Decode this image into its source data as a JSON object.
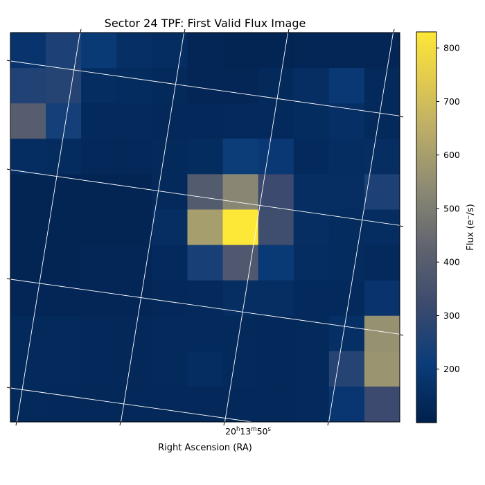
{
  "chart_data": {
    "type": "heatmap",
    "title": "Sector 24 TPF: First Valid Flux Image",
    "xlabel": "Right Ascension (RA)",
    "x_tick_label": "20h13m50s",
    "x_tick_parts": {
      "h": "20",
      "m": "13",
      "s": "50"
    },
    "colorbar": {
      "label": "Flux (e⁻/s)",
      "ticks": [
        200,
        300,
        400,
        500,
        600,
        700,
        800
      ],
      "range": [
        100,
        830
      ],
      "colormap": "cividis"
    },
    "grid": true,
    "rows": 11,
    "cols": 11,
    "values": [
      [
        175,
        250,
        200,
        160,
        150,
        125,
        120,
        120,
        125,
        125,
        125
      ],
      [
        260,
        270,
        150,
        145,
        135,
        125,
        125,
        135,
        155,
        195,
        135
      ],
      [
        400,
        230,
        135,
        135,
        130,
        130,
        140,
        140,
        145,
        160,
        135
      ],
      [
        150,
        145,
        130,
        130,
        135,
        145,
        215,
        195,
        140,
        150,
        155
      ],
      [
        120,
        120,
        120,
        120,
        135,
        390,
        530,
        320,
        155,
        155,
        250
      ],
      [
        120,
        120,
        120,
        120,
        155,
        600,
        830,
        330,
        155,
        145,
        150
      ],
      [
        120,
        120,
        125,
        125,
        140,
        240,
        380,
        200,
        150,
        145,
        135
      ],
      [
        125,
        125,
        125,
        125,
        130,
        135,
        155,
        155,
        140,
        140,
        175
      ],
      [
        135,
        135,
        130,
        130,
        135,
        140,
        135,
        130,
        135,
        160,
        560
      ],
      [
        140,
        135,
        130,
        130,
        135,
        150,
        140,
        130,
        135,
        270,
        570
      ],
      [
        135,
        130,
        130,
        130,
        130,
        130,
        130,
        130,
        140,
        185,
        320
      ]
    ]
  }
}
